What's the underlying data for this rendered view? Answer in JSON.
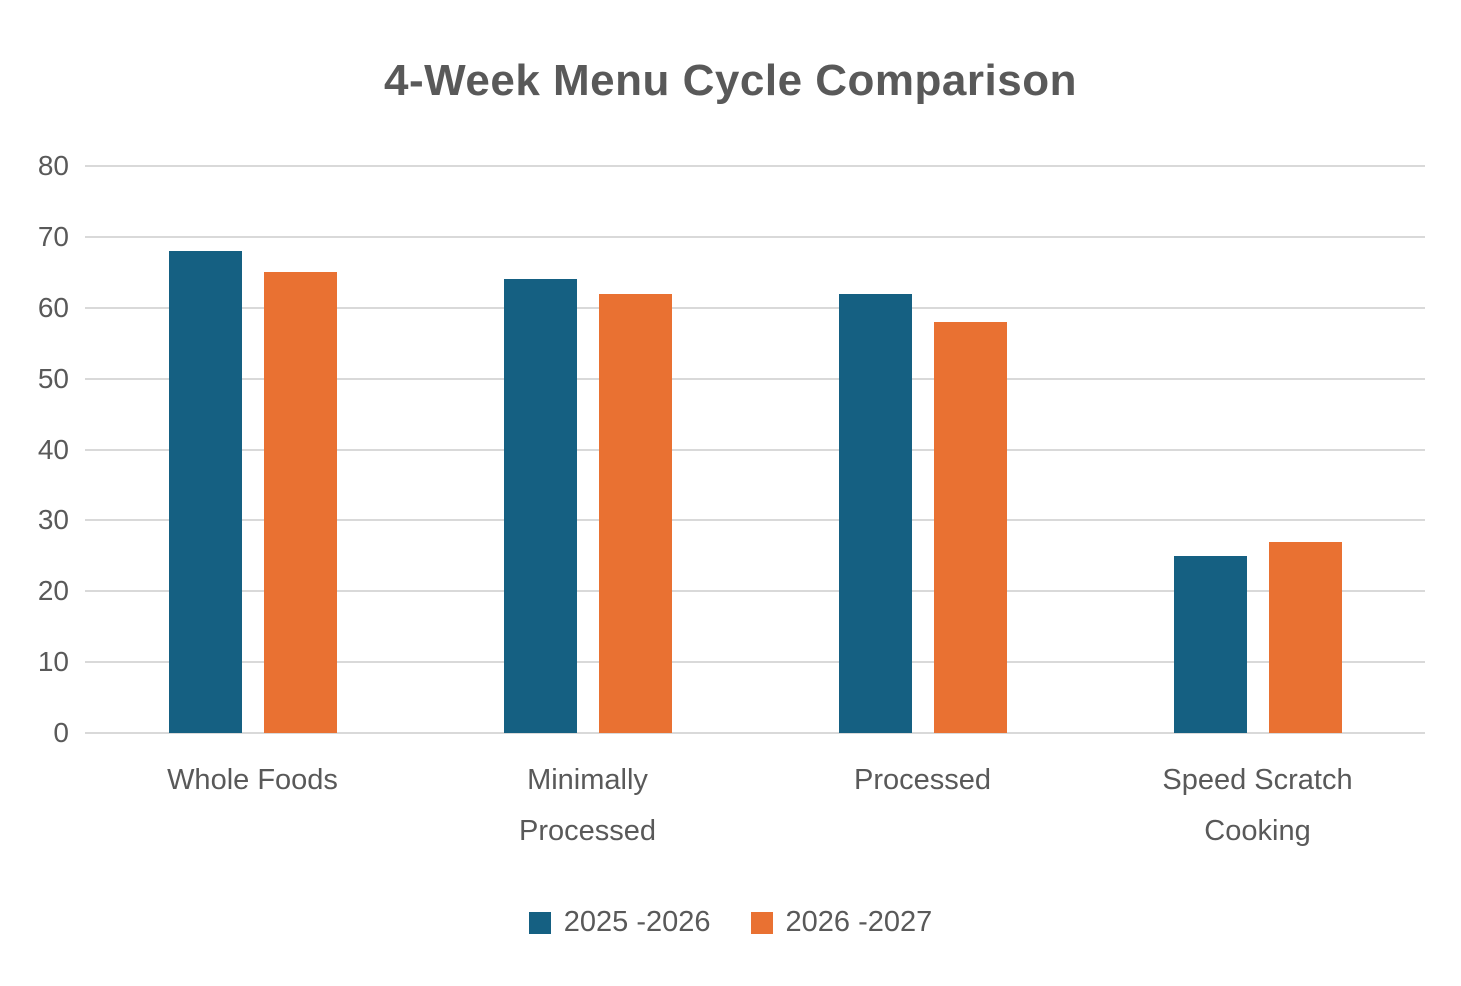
{
  "page": {
    "background": "#FFFFFF"
  },
  "chart_data": {
    "type": "bar",
    "title": "4-Week Menu Cycle Comparison",
    "title_color": "#595959",
    "categories": [
      "Whole Foods",
      "Minimally Processed",
      "Processed",
      "Speed Scratch Cooking"
    ],
    "series": [
      {
        "name": "2025 -2026",
        "color": "#156082",
        "values": [
          68,
          64,
          62,
          25
        ]
      },
      {
        "name": "2026 -2027",
        "color": "#E97132",
        "values": [
          65,
          62,
          58,
          27
        ]
      }
    ],
    "xlabel": "",
    "ylabel": "",
    "ylim": [
      0,
      80
    ],
    "ytick_step": 10,
    "ytick_labels": [
      "0",
      "10",
      "20",
      "30",
      "40",
      "50",
      "60",
      "70",
      "80"
    ],
    "grid": true,
    "gridline_color": "#D9D9D9",
    "axis_text_color": "#595959",
    "legend_position": "bottom"
  }
}
